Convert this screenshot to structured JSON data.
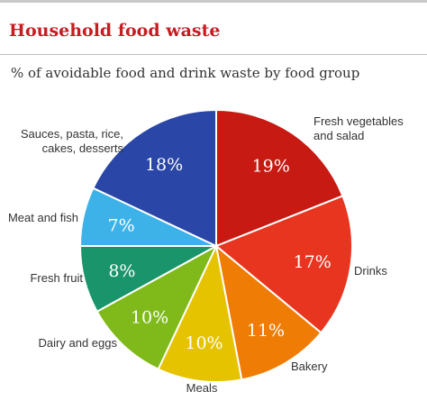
{
  "chart_data": {
    "type": "pie",
    "title": "Household food waste",
    "subtitle": "% of avoidable food and drink waste by food  group",
    "unit": "%",
    "start_angle_deg": 0,
    "direction": "clockwise",
    "slices": [
      {
        "label": "Fresh vegetables and salad",
        "lines": [
          "Fresh vegetables",
          "and salad"
        ],
        "value": 19,
        "value_label": "19%",
        "color": "#c71a12"
      },
      {
        "label": "Drinks",
        "lines": [
          "Drinks"
        ],
        "value": 17,
        "value_label": "17%",
        "color": "#e8351f"
      },
      {
        "label": "Bakery",
        "lines": [
          "Bakery"
        ],
        "value": 11,
        "value_label": "11%",
        "color": "#ef7c05"
      },
      {
        "label": "Meals",
        "lines": [
          "Meals"
        ],
        "value": 10,
        "value_label": "10%",
        "color": "#e6c300"
      },
      {
        "label": "Dairy and eggs",
        "lines": [
          "Dairy and eggs"
        ],
        "value": 10,
        "value_label": "10%",
        "color": "#7fba1a"
      },
      {
        "label": "Fresh fruit",
        "lines": [
          "Fresh fruit"
        ],
        "value": 8,
        "value_label": "8%",
        "color": "#1a946a"
      },
      {
        "label": "Meat and fish",
        "lines": [
          "Meat and fish"
        ],
        "value": 7,
        "value_label": "7%",
        "color": "#3db2e9"
      },
      {
        "label": "Sauces, pasta, rice, cakes, desserts",
        "lines": [
          "Sauces, pasta, rice,",
          "cakes, desserts"
        ],
        "value": 18,
        "value_label": "18%",
        "color": "#2a46a6"
      }
    ]
  }
}
